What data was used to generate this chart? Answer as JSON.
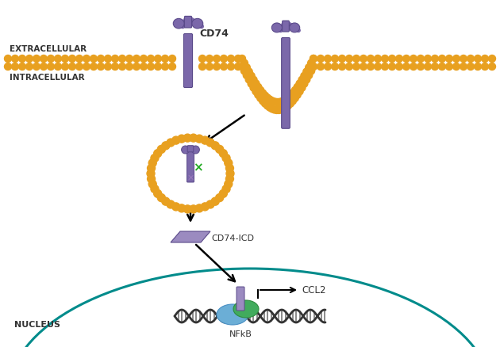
{
  "bg_color": "#ffffff",
  "membrane_color": "#E8A020",
  "protein_color": "#7B68AA",
  "protein_dark": "#5A4A8A",
  "protein_light": "#9B8BC0",
  "nucleus_border_color": "#008B8B",
  "nucleus_fill_color": "#ffffff",
  "nfkb_blue_color": "#6BAED6",
  "nfkb_green_color": "#41AB5D",
  "text_extracellular": "EXTRACELLULAR",
  "text_intracellular": "INTRACELLULAR",
  "text_nucleus": "NUCLEUS",
  "text_cd74": "CD74",
  "text_cd74icd": "CD74-ICD",
  "text_nfkb": "NFkB",
  "text_ccl2": "CCL2",
  "figsize": [
    6.3,
    4.39
  ],
  "dpi": 100
}
